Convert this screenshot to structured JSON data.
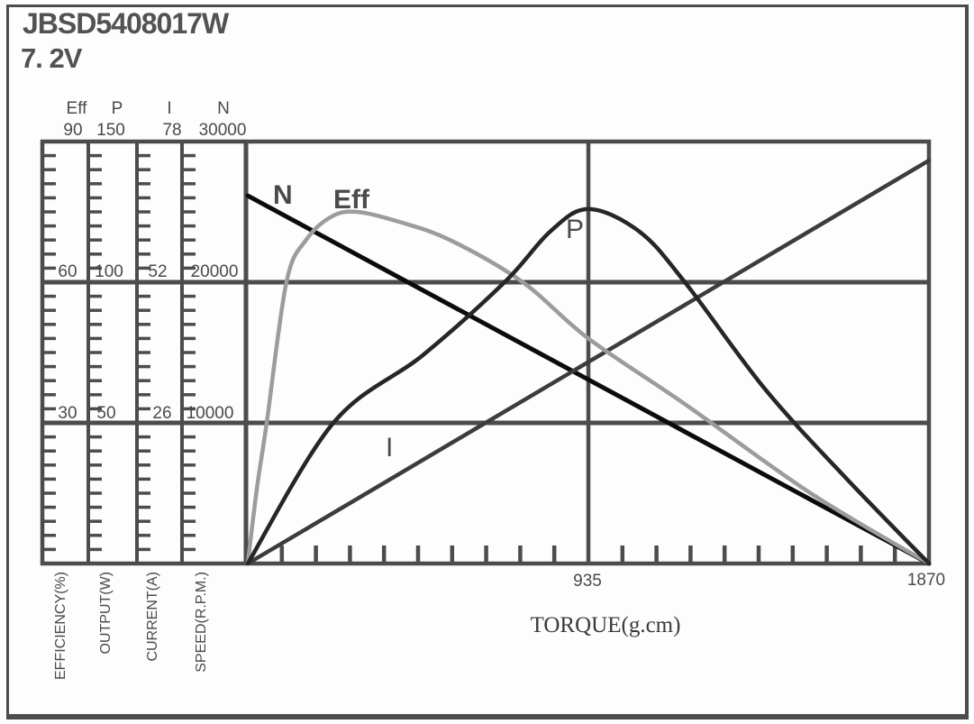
{
  "title": "JBSD5408017W",
  "voltage": "7. 2V",
  "colors": {
    "grid": "#4c4c4c",
    "n_curve": "#0b0b0b",
    "i_curve": "#3c3c3c",
    "p_curve": "#262626",
    "eff_curve": "#9c9c9c",
    "text": "#4a4a4a"
  },
  "left_axes": {
    "headers": [
      {
        "label": "Eff",
        "max": "90"
      },
      {
        "label": "P",
        "max": "150"
      },
      {
        "label": "I",
        "max": "78"
      },
      {
        "label": "N",
        "max": "30000"
      }
    ],
    "mid_labels": [
      "60",
      "100",
      "52",
      "20000"
    ],
    "low_labels": [
      "30",
      "50",
      "26",
      "10000"
    ],
    "axis_titles": [
      "EFFICIENCY(%)",
      "OUTPUT(W)",
      "CURRENT(A)",
      "SPEED(R.P.M.)"
    ]
  },
  "x_axis": {
    "label": "TORQUE(g.cm)",
    "mid_tick": "935",
    "max_tick": "1870"
  },
  "curve_labels": {
    "n": "N",
    "eff": "Eff",
    "p": "P",
    "i": "I"
  },
  "chart_data": {
    "type": "line",
    "title": "JBSD5408017W 7.2V motor performance curves",
    "xlabel": "TORQUE(g.cm)",
    "x_range": [
      0,
      1870
    ],
    "x_tick_values": [
      935,
      1870
    ],
    "x_minor_tick_step": 93.5,
    "grid": true,
    "legend_position": "inline-curve-labels",
    "axes": [
      {
        "name": "Eff",
        "label": "EFFICIENCY(%)",
        "range": [
          0,
          90
        ],
        "ticks": [
          30,
          60,
          90
        ]
      },
      {
        "name": "P",
        "label": "OUTPUT(W)",
        "range": [
          0,
          150
        ],
        "ticks": [
          50,
          100,
          150
        ]
      },
      {
        "name": "I",
        "label": "CURRENT(A)",
        "range": [
          0,
          78
        ],
        "ticks": [
          26,
          52,
          78
        ]
      },
      {
        "name": "N",
        "label": "SPEED(R.P.M.)",
        "range": [
          0,
          30000
        ],
        "ticks": [
          10000,
          20000,
          30000
        ]
      }
    ],
    "series": [
      {
        "name": "N",
        "axis": "N",
        "color": "#0b0b0b",
        "width": 5,
        "smooth": false,
        "points": [
          [
            0,
            26150
          ],
          [
            1870,
            0
          ]
        ]
      },
      {
        "name": "I",
        "axis": "I",
        "color": "#3c3c3c",
        "width": 4.5,
        "smooth": false,
        "points": [
          [
            0,
            0
          ],
          [
            1870,
            74.5
          ]
        ]
      },
      {
        "name": "Eff",
        "axis": "Eff",
        "color": "#9c9c9c",
        "width": 4.5,
        "smooth": true,
        "points": [
          [
            0,
            0
          ],
          [
            25,
            16
          ],
          [
            52,
            30
          ],
          [
            106,
            60
          ],
          [
            160,
            69
          ],
          [
            230,
            74
          ],
          [
            300,
            75
          ],
          [
            410,
            73
          ],
          [
            555,
            69
          ],
          [
            755,
            60
          ],
          [
            935,
            48
          ],
          [
            1200,
            34
          ],
          [
            1545,
            15
          ],
          [
            1870,
            0
          ]
        ]
      },
      {
        "name": "P",
        "axis": "P",
        "color": "#262626",
        "width": 4.5,
        "smooth": true,
        "points": [
          [
            0,
            0
          ],
          [
            235,
            50
          ],
          [
            480,
            74
          ],
          [
            705,
            100
          ],
          [
            830,
            118
          ],
          [
            935,
            126
          ],
          [
            1075,
            118
          ],
          [
            1200,
            100
          ],
          [
            1420,
            62
          ],
          [
            1645,
            30
          ],
          [
            1870,
            0
          ]
        ]
      }
    ]
  }
}
